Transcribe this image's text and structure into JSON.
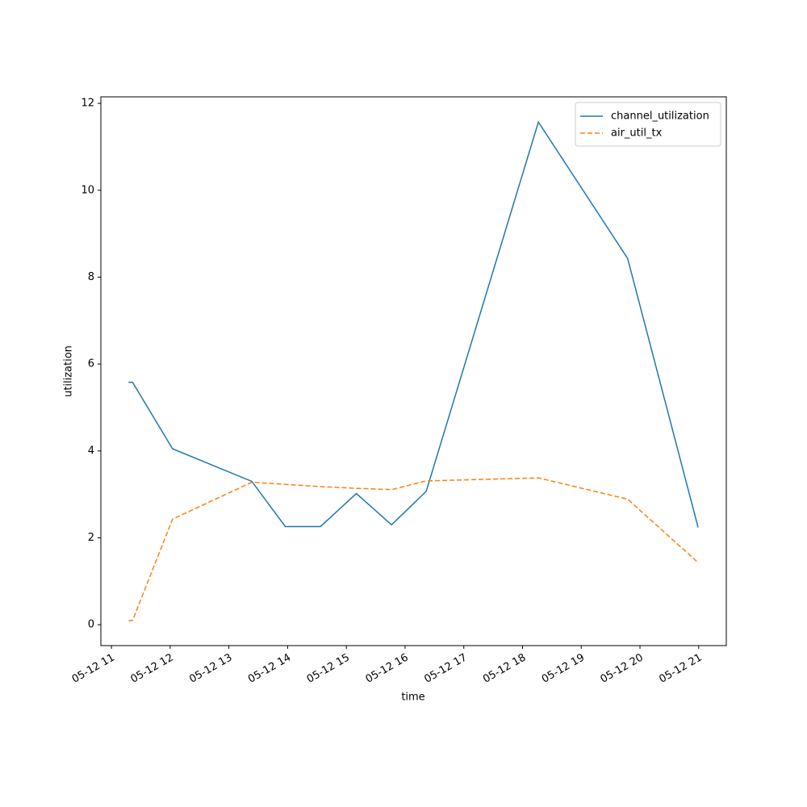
{
  "chart_data": {
    "type": "line",
    "x_label": "time",
    "y_label": "utilization",
    "x": [
      11.29,
      11.36,
      12.04,
      13.39,
      13.96,
      14.56,
      15.17,
      15.77,
      16.36,
      18.27,
      19.79,
      20.99
    ],
    "series": [
      {
        "name": "channel_utilization",
        "color": "#1f77b4",
        "linestyle": "solid",
        "values": [
          5.58,
          5.58,
          4.05,
          3.3,
          2.26,
          2.26,
          3.02,
          2.3,
          3.07,
          11.57,
          8.43,
          2.24
        ]
      },
      {
        "name": "air_util_tx",
        "color": "#ff7f0e",
        "linestyle": "dashed",
        "values": [
          0.09,
          0.1,
          2.43,
          3.28,
          3.23,
          3.18,
          3.14,
          3.11,
          3.31,
          3.38,
          2.89,
          1.43
        ]
      }
    ],
    "xlim": [
      10.82,
      21.47
    ],
    "xticks": [
      {
        "value": 11,
        "label": "05-12 11"
      },
      {
        "value": 12,
        "label": "05-12 12"
      },
      {
        "value": 13,
        "label": "05-12 13"
      },
      {
        "value": 14,
        "label": "05-12 14"
      },
      {
        "value": 15,
        "label": "05-12 15"
      },
      {
        "value": 16,
        "label": "05-12 16"
      },
      {
        "value": 17,
        "label": "05-12 17"
      },
      {
        "value": 18,
        "label": "05-12 18"
      },
      {
        "value": 19,
        "label": "05-12 19"
      },
      {
        "value": 20,
        "label": "05-12 20"
      },
      {
        "value": 21,
        "label": "05-12 21"
      }
    ],
    "ylim": [
      -0.48,
      12.15
    ],
    "yticks": [
      0,
      2,
      4,
      6,
      8,
      10,
      12
    ],
    "grid": false,
    "legend": "upper right"
  }
}
